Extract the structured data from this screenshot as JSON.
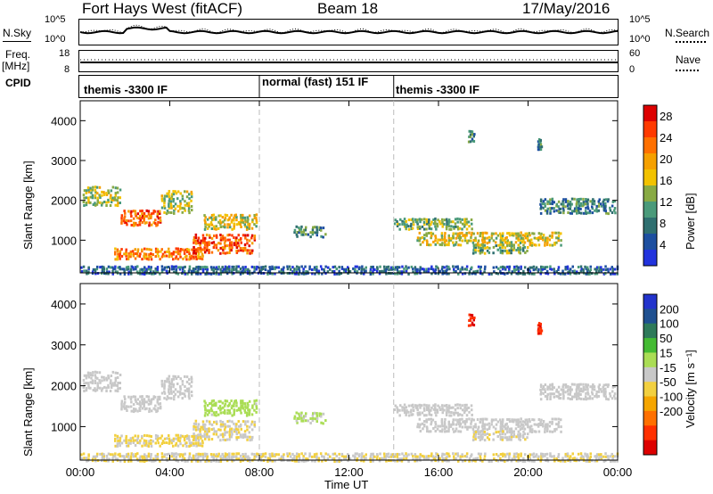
{
  "header": {
    "site": "Fort Hays West (fitACF)",
    "beam": "Beam 18",
    "date": "17/May/2016"
  },
  "noise_panel": {
    "left_label": "N.Sky",
    "right_label": "N.Search",
    "y_ticks_left": [
      "10^5",
      "10^0"
    ],
    "y_ticks_right": [
      "10^5",
      "10^0"
    ]
  },
  "freq_panel": {
    "left_label": "Freq.",
    "left_unit": "[MHz]",
    "right_label": "Nave",
    "y_ticks_left": [
      "18",
      "8"
    ],
    "y_ticks_right": [
      "60",
      "0"
    ]
  },
  "cpid": {
    "label": "CPID",
    "modes": [
      {
        "name": "themis -3300 IF",
        "start_hour": 0,
        "end_hour": 8
      },
      {
        "name": "normal (fast) 151 IF",
        "start_hour": 8,
        "end_hour": 14
      },
      {
        "name": "themis -3300 IF",
        "start_hour": 14,
        "end_hour": 24
      }
    ]
  },
  "power_panel": {
    "ylabel": "Slant Range [km]",
    "y_ticks": [
      "4000",
      "3000",
      "2000",
      "1000"
    ],
    "colorbar_label": "Power [dB]",
    "colorbar_ticks": [
      "28",
      "24",
      "20",
      "16",
      "12",
      "8",
      "4"
    ],
    "colors": [
      "#2233dd",
      "#1d4fa0",
      "#2f6f70",
      "#4a9a7a",
      "#88aa44",
      "#f2c200",
      "#f5a000",
      "#ff7000",
      "#ff3a00",
      "#dd0000"
    ]
  },
  "velocity_panel": {
    "ylabel": "Slant Range [km]",
    "y_ticks": [
      "4000",
      "3000",
      "2000",
      "1000"
    ],
    "colorbar_label": "Velocity [m s⁻¹]",
    "colorbar_ticks": [
      "200",
      "100",
      "50",
      "15",
      "-15",
      "-50",
      "-100",
      "-200"
    ],
    "colors": [
      "#2233cc",
      "#1f5090",
      "#2e7a5a",
      "#44bb33",
      "#aadd55",
      "#c8c8c8",
      "#f2d040",
      "#f5a500",
      "#ff7000",
      "#ff3000",
      "#dd0000"
    ]
  },
  "x_axis": {
    "label": "Time UT",
    "ticks": [
      "00:00",
      "04:00",
      "08:00",
      "12:00",
      "16:00",
      "20:00",
      "00:00"
    ]
  },
  "chart_data": {
    "type": "heatmap",
    "title": "Fort Hays West (fitACF)",
    "xlabel": "Time UT",
    "ylabel": "Slant Range [km]",
    "xlim_hours": [
      0,
      24
    ],
    "ylim_km": [
      180,
      4500
    ],
    "power_scale_db": [
      0,
      30
    ],
    "velocity_scale_ms": [
      -250,
      250
    ],
    "regions": [
      {
        "t0": 0.1,
        "t1": 1.8,
        "r0": 1900,
        "r1": 2400,
        "power": 14,
        "velocity": 0
      },
      {
        "t0": 1.8,
        "t1": 3.6,
        "r0": 1400,
        "r1": 1800,
        "power": 24,
        "velocity": 0
      },
      {
        "t0": 3.6,
        "t1": 5.0,
        "r0": 1700,
        "r1": 2300,
        "power": 14,
        "velocity": 0
      },
      {
        "t0": 1.5,
        "t1": 5.5,
        "r0": 550,
        "r1": 850,
        "power": 22,
        "velocity": -30
      },
      {
        "t0": 5.0,
        "t1": 7.8,
        "r0": 700,
        "r1": 1200,
        "power": 24,
        "velocity": -20
      },
      {
        "t0": 5.5,
        "t1": 7.9,
        "r0": 1300,
        "r1": 1700,
        "power": 16,
        "velocity": 40
      },
      {
        "t0": 9.5,
        "t1": 11.0,
        "r0": 1100,
        "r1": 1400,
        "power": 10,
        "velocity": 30
      },
      {
        "t0": 14.0,
        "t1": 17.5,
        "r0": 1300,
        "r1": 1600,
        "power": 12,
        "velocity": 0
      },
      {
        "t0": 15.0,
        "t1": 21.5,
        "r0": 900,
        "r1": 1250,
        "power": 16,
        "velocity": 0
      },
      {
        "t0": 17.5,
        "t1": 20.0,
        "r0": 700,
        "r1": 950,
        "power": 12,
        "velocity": -10
      },
      {
        "t0": 20.5,
        "t1": 23.9,
        "r0": 1700,
        "r1": 2100,
        "power": 8,
        "velocity": 0
      },
      {
        "t0": 17.3,
        "t1": 17.6,
        "r0": 3500,
        "r1": 3800,
        "power": 10,
        "velocity": -200
      },
      {
        "t0": 20.4,
        "t1": 20.6,
        "r0": 3300,
        "r1": 3600,
        "power": 8,
        "velocity": -200
      },
      {
        "t0": 0.0,
        "t1": 24.0,
        "r0": 180,
        "r1": 400,
        "power": 6,
        "velocity": -20
      }
    ]
  }
}
